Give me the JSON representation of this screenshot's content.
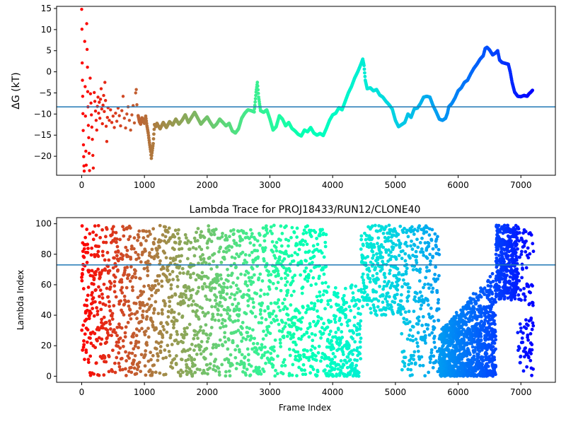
{
  "chart_data": [
    {
      "type": "scatter",
      "title": "",
      "xlabel": "",
      "ylabel": "ΔG (kT)",
      "xlim": [
        -400,
        7550
      ],
      "ylim": [
        -24.5,
        15.5
      ],
      "xticks": [
        0,
        1000,
        2000,
        3000,
        4000,
        5000,
        6000,
        7000
      ],
      "xtick_labels": [
        "0",
        "1000",
        "2000",
        "3000",
        "4000",
        "5000",
        "6000",
        "7000"
      ],
      "yticks": [
        15,
        10,
        5,
        0,
        -5,
        -10,
        -15,
        -20
      ],
      "ytick_labels": [
        "15",
        "10",
        "5",
        "0",
        "−5",
        "−10",
        "−15",
        "−20"
      ],
      "grid": false,
      "colormap": "rainbow (red at frame 0 → violet at frame 7200)",
      "hline": {
        "y": -8.3,
        "color": "#1f77b4"
      },
      "points": [
        [
          0,
          14.8
        ],
        [
          4,
          10.1
        ],
        [
          8,
          2.1
        ],
        [
          12,
          -2.0
        ],
        [
          16,
          -5.8
        ],
        [
          20,
          -9.9
        ],
        [
          24,
          -13.9
        ],
        [
          28,
          -17.3
        ],
        [
          32,
          -20.1
        ],
        [
          36,
          -22.3
        ],
        [
          40,
          -23.5
        ],
        [
          48,
          7.2
        ],
        [
          55,
          -3.5
        ],
        [
          60,
          -10.5
        ],
        [
          66,
          -18.8
        ],
        [
          72,
          -22.1
        ],
        [
          80,
          11.4
        ],
        [
          86,
          5.3
        ],
        [
          92,
          1.1
        ],
        [
          96,
          -4.7
        ],
        [
          100,
          -8.3
        ],
        [
          106,
          -12.7
        ],
        [
          112,
          -15.6
        ],
        [
          118,
          -19.3
        ],
        [
          125,
          -23.4
        ],
        [
          135,
          -1.5
        ],
        [
          140,
          -5.2
        ],
        [
          148,
          -7.4
        ],
        [
          155,
          -10.2
        ],
        [
          162,
          -13.1
        ],
        [
          170,
          -16.0
        ],
        [
          178,
          -19.8
        ],
        [
          185,
          -22.8
        ],
        [
          200,
          -4.9
        ],
        [
          210,
          -7.0
        ],
        [
          220,
          -9.3
        ],
        [
          230,
          -11.5
        ],
        [
          240,
          -13.8
        ],
        [
          250,
          -8.2
        ],
        [
          260,
          -6.0
        ],
        [
          270,
          -9.8
        ],
        [
          280,
          -7.2
        ],
        [
          290,
          -11.0
        ],
        [
          300,
          -6.5
        ],
        [
          310,
          -4.0
        ],
        [
          320,
          -8.8
        ],
        [
          330,
          -12.3
        ],
        [
          340,
          -7.9
        ],
        [
          350,
          -5.6
        ],
        [
          360,
          -9.4
        ],
        [
          370,
          -2.5
        ],
        [
          380,
          -6.8
        ],
        [
          390,
          -12.9
        ],
        [
          400,
          -16.5
        ],
        [
          410,
          -10.8
        ],
        [
          420,
          -8.5
        ],
        [
          440,
          -11.5
        ],
        [
          460,
          -9.0
        ],
        [
          480,
          -12.0
        ],
        [
          500,
          -10.5
        ],
        [
          520,
          -13.2
        ],
        [
          540,
          -9.8
        ],
        [
          560,
          -11.7
        ],
        [
          580,
          -8.6
        ],
        [
          600,
          -10.4
        ],
        [
          620,
          -12.8
        ],
        [
          640,
          -9.2
        ],
        [
          660,
          -5.8
        ],
        [
          680,
          -11.0
        ],
        [
          700,
          -13.3
        ],
        [
          720,
          -10.0
        ],
        [
          740,
          -8.3
        ],
        [
          760,
          -11.5
        ],
        [
          780,
          -13.8
        ],
        [
          800,
          -10.2
        ],
        [
          820,
          -8.0
        ],
        [
          840,
          -12.1
        ],
        [
          860,
          -5.0
        ],
        [
          870,
          -4.2
        ],
        [
          880,
          -7.8
        ],
        [
          900,
          -10.4
        ],
        [
          920,
          -11.8
        ],
        [
          940,
          -12.4
        ],
        [
          960,
          -10.9
        ],
        [
          980,
          -11.6
        ],
        [
          1000,
          -12.2
        ],
        [
          1020,
          -10.5
        ],
        [
          1040,
          -12.8
        ],
        [
          1060,
          -14.5
        ],
        [
          1080,
          -16.8
        ],
        [
          1100,
          -18.9
        ],
        [
          1110,
          -20.5
        ],
        [
          1120,
          -19.2
        ],
        [
          1140,
          -17.0
        ],
        [
          1160,
          -12.5
        ],
        [
          1180,
          -13.0
        ],
        [
          1200,
          -12.2
        ],
        [
          1220,
          -12.8
        ],
        [
          1250,
          -13.5
        ],
        [
          1300,
          -12.0
        ],
        [
          1350,
          -13.2
        ],
        [
          1400,
          -11.8
        ],
        [
          1450,
          -12.6
        ],
        [
          1500,
          -11.2
        ],
        [
          1550,
          -12.4
        ],
        [
          1600,
          -11.5
        ],
        [
          1650,
          -10.2
        ],
        [
          1700,
          -12.0
        ],
        [
          1750,
          -10.8
        ],
        [
          1800,
          -9.6
        ],
        [
          1850,
          -11.0
        ],
        [
          1900,
          -12.4
        ],
        [
          1950,
          -11.5
        ],
        [
          2000,
          -10.7
        ],
        [
          2050,
          -12.0
        ],
        [
          2100,
          -13.1
        ],
        [
          2150,
          -12.4
        ],
        [
          2200,
          -11.2
        ],
        [
          2250,
          -12.0
        ],
        [
          2300,
          -12.8
        ],
        [
          2350,
          -12.2
        ],
        [
          2400,
          -14.0
        ],
        [
          2450,
          -14.5
        ],
        [
          2500,
          -13.5
        ],
        [
          2550,
          -11.0
        ],
        [
          2600,
          -9.8
        ],
        [
          2650,
          -9.0
        ],
        [
          2700,
          -9.2
        ],
        [
          2750,
          -9.5
        ],
        [
          2780,
          -4.8
        ],
        [
          2800,
          -2.5
        ],
        [
          2820,
          -6.0
        ],
        [
          2850,
          -9.2
        ],
        [
          2900,
          -9.6
        ],
        [
          2950,
          -9.0
        ],
        [
          3000,
          -11.2
        ],
        [
          3050,
          -13.8
        ],
        [
          3100,
          -13.0
        ],
        [
          3150,
          -10.4
        ],
        [
          3200,
          -11.2
        ],
        [
          3250,
          -12.8
        ],
        [
          3300,
          -12.0
        ],
        [
          3350,
          -13.4
        ],
        [
          3400,
          -14.0
        ],
        [
          3450,
          -14.8
        ],
        [
          3500,
          -15.2
        ],
        [
          3550,
          -13.8
        ],
        [
          3600,
          -14.2
        ],
        [
          3650,
          -13.2
        ],
        [
          3700,
          -14.5
        ],
        [
          3750,
          -15.0
        ],
        [
          3800,
          -14.6
        ],
        [
          3850,
          -15.1
        ],
        [
          3900,
          -13.4
        ],
        [
          3950,
          -11.5
        ],
        [
          4000,
          -10.2
        ],
        [
          4050,
          -9.8
        ],
        [
          4100,
          -8.5
        ],
        [
          4150,
          -9.0
        ],
        [
          4200,
          -7.0
        ],
        [
          4250,
          -5.0
        ],
        [
          4300,
          -3.5
        ],
        [
          4350,
          -1.5
        ],
        [
          4400,
          0.0
        ],
        [
          4450,
          1.8
        ],
        [
          4480,
          3.0
        ],
        [
          4500,
          1.5
        ],
        [
          4520,
          -2.0
        ],
        [
          4550,
          -4.0
        ],
        [
          4600,
          -3.8
        ],
        [
          4650,
          -4.5
        ],
        [
          4700,
          -4.2
        ],
        [
          4750,
          -5.5
        ],
        [
          4800,
          -6.0
        ],
        [
          4850,
          -7.0
        ],
        [
          4900,
          -7.8
        ],
        [
          4950,
          -8.8
        ],
        [
          5000,
          -11.5
        ],
        [
          5050,
          -13.0
        ],
        [
          5100,
          -12.5
        ],
        [
          5150,
          -12.0
        ],
        [
          5200,
          -10.0
        ],
        [
          5250,
          -10.8
        ],
        [
          5300,
          -8.8
        ],
        [
          5350,
          -8.6
        ],
        [
          5400,
          -7.5
        ],
        [
          5450,
          -6.0
        ],
        [
          5500,
          -5.8
        ],
        [
          5550,
          -6.0
        ],
        [
          5600,
          -8.0
        ],
        [
          5650,
          -9.5
        ],
        [
          5700,
          -11.2
        ],
        [
          5750,
          -11.5
        ],
        [
          5800,
          -11.0
        ],
        [
          5830,
          -9.8
        ],
        [
          5850,
          -8.3
        ],
        [
          5900,
          -7.5
        ],
        [
          5950,
          -6.2
        ],
        [
          6000,
          -4.5
        ],
        [
          6050,
          -3.8
        ],
        [
          6100,
          -2.5
        ],
        [
          6150,
          -2.0
        ],
        [
          6200,
          -0.5
        ],
        [
          6250,
          0.8
        ],
        [
          6300,
          1.8
        ],
        [
          6350,
          3.0
        ],
        [
          6400,
          3.8
        ],
        [
          6430,
          5.5
        ],
        [
          6460,
          5.8
        ],
        [
          6500,
          5.2
        ],
        [
          6550,
          4.0
        ],
        [
          6600,
          4.5
        ],
        [
          6630,
          5.0
        ],
        [
          6660,
          2.8
        ],
        [
          6700,
          2.2
        ],
        [
          6750,
          2.0
        ],
        [
          6800,
          1.8
        ],
        [
          6830,
          0.0
        ],
        [
          6860,
          -2.5
        ],
        [
          6900,
          -4.8
        ],
        [
          6950,
          -5.8
        ],
        [
          7000,
          -5.9
        ],
        [
          7050,
          -5.6
        ],
        [
          7100,
          -5.8
        ],
        [
          7130,
          -5.2
        ],
        [
          7160,
          -4.8
        ],
        [
          7190,
          -4.3
        ]
      ]
    },
    {
      "type": "scatter",
      "title": "Lambda Trace for PROJ18433/RUN12/CLONE40",
      "xlabel": "Frame Index",
      "ylabel": "Lambda Index",
      "xlim": [
        -400,
        7550
      ],
      "ylim": [
        -4,
        104
      ],
      "xticks": [
        0,
        1000,
        2000,
        3000,
        4000,
        5000,
        6000,
        7000
      ],
      "xtick_labels": [
        "0",
        "1000",
        "2000",
        "3000",
        "4000",
        "5000",
        "6000",
        "7000"
      ],
      "yticks": [
        0,
        20,
        40,
        60,
        80,
        100
      ],
      "ytick_labels": [
        "0",
        "20",
        "40",
        "60",
        "80",
        "100"
      ],
      "grid": false,
      "colormap": "rainbow (red at frame 0 → violet at frame 7200)",
      "hline": {
        "y": 73,
        "color": "#1f77b4"
      },
      "frame_range": [
        0,
        7200
      ],
      "lambda_range": [
        0,
        99
      ]
    }
  ]
}
